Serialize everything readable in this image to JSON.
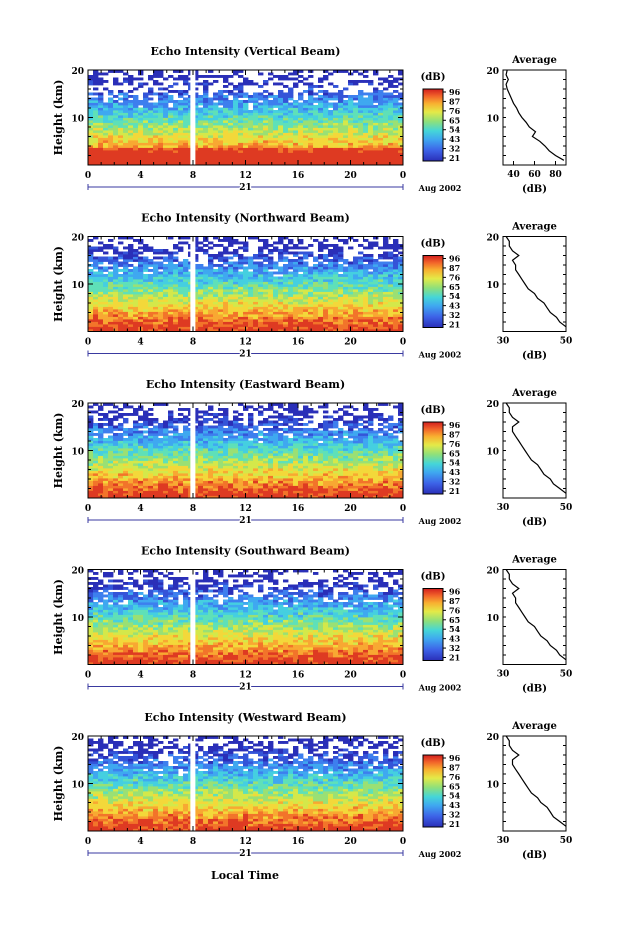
{
  "figure": {
    "bottom_axis_label": "Local Time",
    "date_label": "Aug 2002",
    "day_label": "21",
    "colorbar_unit": "(dB)",
    "avg_title": "Average",
    "avg_unit": "(dB)",
    "y_label": "Height (km)",
    "colorbar_ticks": [
      "96",
      "87",
      "76",
      "65",
      "54",
      "43",
      "32",
      "21"
    ]
  },
  "chart_data": [
    {
      "type": "heatmap",
      "title": "Echo Intensity (Vertical Beam)",
      "x_ticks": [
        "0",
        "4",
        "8",
        "12",
        "16",
        "20",
        "0"
      ],
      "y_ticks": [
        "20",
        "10"
      ],
      "ylim": [
        0,
        20
      ],
      "xlim": [
        0,
        24
      ],
      "avg_x_ticks": [
        "40",
        "60",
        "80"
      ],
      "avg_xlim": [
        30,
        90
      ],
      "avg_profile_km": [
        1,
        2,
        3,
        4,
        5,
        6,
        7,
        8,
        9,
        10,
        11,
        12,
        13,
        14,
        15,
        16,
        17,
        18,
        19,
        20
      ],
      "avg_profile_db": [
        88,
        80,
        74,
        70,
        65,
        58,
        61,
        55,
        52,
        48,
        45,
        43,
        40,
        38,
        36,
        34,
        33,
        35,
        33,
        34
      ]
    },
    {
      "type": "heatmap",
      "title": "Echo Intensity (Northward Beam)",
      "x_ticks": [
        "0",
        "4",
        "8",
        "12",
        "16",
        "20",
        "0"
      ],
      "y_ticks": [
        "20",
        "10"
      ],
      "ylim": [
        0,
        20
      ],
      "xlim": [
        0,
        24
      ],
      "avg_x_ticks": [
        "30",
        "50"
      ],
      "avg_xlim": [
        30,
        50
      ],
      "avg_profile_km": [
        1,
        2,
        3,
        4,
        5,
        6,
        7,
        8,
        9,
        10,
        11,
        12,
        13,
        14,
        15,
        16,
        17,
        18,
        19,
        20
      ],
      "avg_profile_db": [
        50,
        48,
        47,
        45,
        44,
        43,
        41,
        40,
        38,
        37,
        36,
        35,
        34,
        34,
        33,
        35,
        33,
        32,
        32,
        31
      ]
    },
    {
      "type": "heatmap",
      "title": "Echo Intensity (Eastward Beam)",
      "x_ticks": [
        "0",
        "4",
        "8",
        "12",
        "16",
        "20",
        "0"
      ],
      "y_ticks": [
        "20",
        "10"
      ],
      "ylim": [
        0,
        20
      ],
      "xlim": [
        0,
        24
      ],
      "avg_x_ticks": [
        "30",
        "50"
      ],
      "avg_xlim": [
        30,
        50
      ],
      "avg_profile_km": [
        1,
        2,
        3,
        4,
        5,
        6,
        7,
        8,
        9,
        10,
        11,
        12,
        13,
        14,
        15,
        16,
        17,
        18,
        19,
        20
      ],
      "avg_profile_db": [
        50,
        48,
        46,
        45,
        43,
        42,
        41,
        39,
        38,
        37,
        36,
        35,
        34,
        33,
        33,
        35,
        33,
        32,
        32,
        31
      ]
    },
    {
      "type": "heatmap",
      "title": "Echo Intensity (Southward Beam)",
      "x_ticks": [
        "0",
        "4",
        "8",
        "12",
        "16",
        "20",
        "0"
      ],
      "y_ticks": [
        "20",
        "10"
      ],
      "ylim": [
        0,
        20
      ],
      "xlim": [
        0,
        24
      ],
      "avg_x_ticks": [
        "30",
        "50"
      ],
      "avg_xlim": [
        30,
        50
      ],
      "avg_profile_km": [
        1,
        2,
        3,
        4,
        5,
        6,
        7,
        8,
        9,
        10,
        11,
        12,
        13,
        14,
        15,
        16,
        17,
        18,
        19,
        20
      ],
      "avg_profile_db": [
        50,
        48,
        47,
        45,
        44,
        42,
        41,
        40,
        38,
        37,
        36,
        35,
        34,
        34,
        33,
        35,
        33,
        32,
        32,
        31
      ]
    },
    {
      "type": "heatmap",
      "title": "Echo Intensity (Westward Beam)",
      "x_ticks": [
        "0",
        "4",
        "8",
        "12",
        "16",
        "20",
        "0"
      ],
      "y_ticks": [
        "20",
        "10"
      ],
      "ylim": [
        0,
        20
      ],
      "xlim": [
        0,
        24
      ],
      "avg_x_ticks": [
        "30",
        "50"
      ],
      "avg_xlim": [
        30,
        50
      ],
      "avg_profile_km": [
        1,
        2,
        3,
        4,
        5,
        6,
        7,
        8,
        9,
        10,
        11,
        12,
        13,
        14,
        15,
        16,
        17,
        18,
        19,
        20
      ],
      "avg_profile_db": [
        50,
        48,
        46,
        45,
        44,
        42,
        41,
        39,
        38,
        37,
        36,
        35,
        34,
        33,
        33,
        35,
        33,
        32,
        32,
        31
      ]
    }
  ]
}
